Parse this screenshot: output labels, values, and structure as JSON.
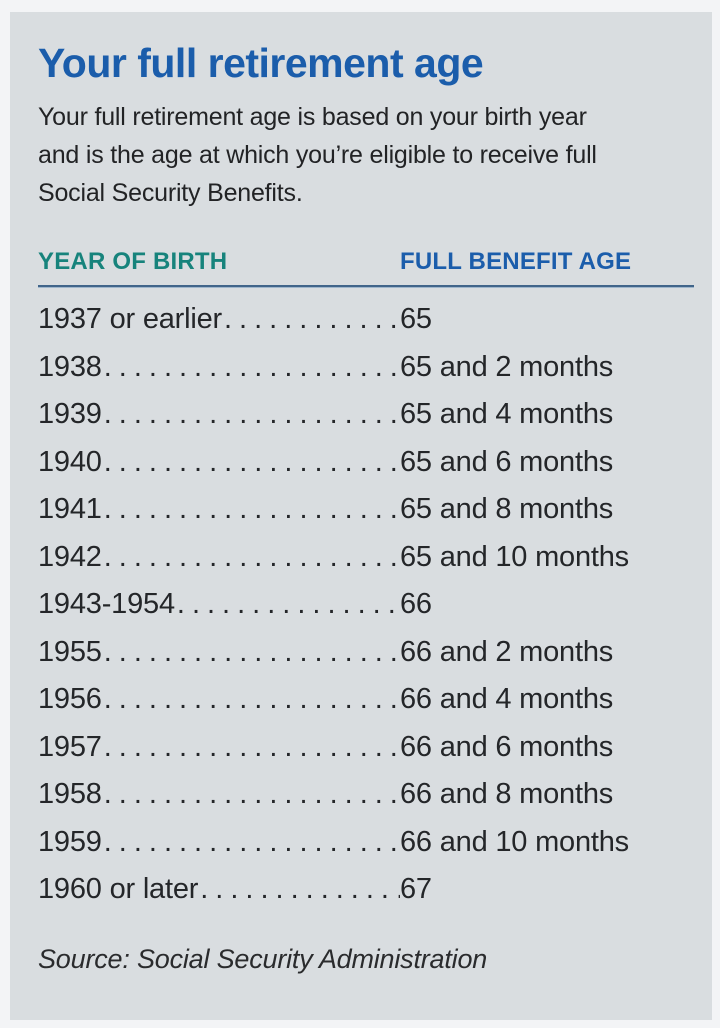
{
  "chart_data": {
    "type": "table",
    "title": "Your full retirement age",
    "columns": [
      "YEAR OF BIRTH",
      "FULL BENEFIT AGE"
    ],
    "rows": [
      {
        "year_of_birth": "1937 or earlier",
        "full_benefit_age": "65"
      },
      {
        "year_of_birth": "1938",
        "full_benefit_age": "65 and 2 months"
      },
      {
        "year_of_birth": "1939",
        "full_benefit_age": "65 and 4 months"
      },
      {
        "year_of_birth": "1940",
        "full_benefit_age": "65 and 6 months"
      },
      {
        "year_of_birth": "1941",
        "full_benefit_age": "65 and 8 months"
      },
      {
        "year_of_birth": "1942",
        "full_benefit_age": "65 and 10 months"
      },
      {
        "year_of_birth": "1943-1954",
        "full_benefit_age": "66"
      },
      {
        "year_of_birth": "1955",
        "full_benefit_age": "66 and 2 months"
      },
      {
        "year_of_birth": "1956",
        "full_benefit_age": "66 and 4 months"
      },
      {
        "year_of_birth": "1957",
        "full_benefit_age": "66 and 6 months"
      },
      {
        "year_of_birth": "1958",
        "full_benefit_age": "66 and 8 months"
      },
      {
        "year_of_birth": "1959",
        "full_benefit_age": "66 and 10 months"
      },
      {
        "year_of_birth": "1960 or later",
        "full_benefit_age": "67"
      }
    ],
    "source": "Source: Social Security Administration"
  },
  "header": {
    "title": "Your full retirement age",
    "description_lines": [
      "Your full retirement age is based on your birth year",
      "and is the age at which you’re eligible to receive full",
      "Social Security Benefits."
    ]
  },
  "table": {
    "leader_char": ".",
    "leader_repeat": 60
  },
  "footer": {
    "source": "Source: Social Security Administration"
  },
  "colors": {
    "title_blue": "#1b5dab",
    "header_teal": "#17837c",
    "header_blue": "#1b5dab",
    "rule_blue_gray": "#41658a",
    "panel_background": "#d9dde0",
    "outer_border": "#f3f4f6",
    "body_text": "#242629"
  }
}
